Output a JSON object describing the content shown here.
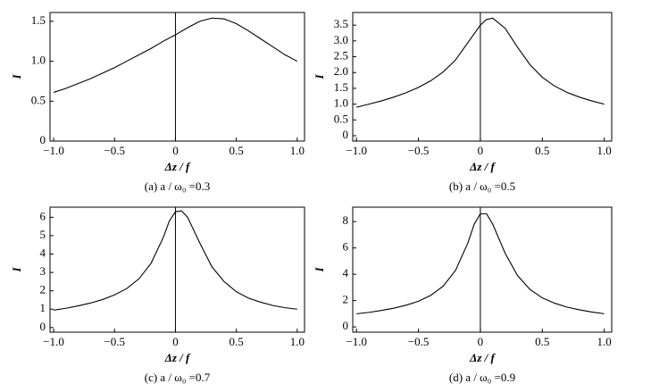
{
  "chart_data": [
    {
      "type": "line",
      "caption": "(a) a / ω₀ =0.3",
      "x_label": "Δz / f",
      "y_label": "I",
      "x": [
        -1,
        -0.9,
        -0.8,
        -0.7,
        -0.6,
        -0.5,
        -0.4,
        -0.3,
        -0.2,
        -0.1,
        0,
        0.1,
        0.2,
        0.3,
        0.4,
        0.5,
        0.6,
        0.7,
        0.8,
        0.9,
        1
      ],
      "values": [
        0.61,
        0.66,
        0.72,
        0.78,
        0.85,
        0.92,
        1.0,
        1.08,
        1.16,
        1.25,
        1.33,
        1.42,
        1.5,
        1.54,
        1.53,
        1.47,
        1.38,
        1.28,
        1.18,
        1.08,
        1.0
      ],
      "color": "#000000",
      "xlim": [
        -1.03,
        1.06
      ],
      "ylim": [
        0,
        1.61
      ],
      "xticks": [
        {
          "value": -1,
          "label": "−1.0"
        },
        {
          "value": -0.5,
          "label": "−0.5"
        },
        0,
        0.5,
        {
          "value": 1,
          "label": "1.0"
        }
      ],
      "yticks": [
        0,
        0.5,
        {
          "value": 1,
          "label": "1.0"
        },
        1.5
      ]
    },
    {
      "type": "line",
      "caption": "(b) a / ω₀ =0.5",
      "x_label": "Δz / f",
      "y_label": "I",
      "x": [
        -1,
        -0.9,
        -0.8,
        -0.7,
        -0.6,
        -0.5,
        -0.4,
        -0.3,
        -0.2,
        -0.1,
        0,
        0.05,
        0.1,
        0.2,
        0.3,
        0.4,
        0.5,
        0.6,
        0.7,
        0.8,
        0.9,
        1
      ],
      "values": [
        0.9,
        1.0,
        1.1,
        1.22,
        1.36,
        1.53,
        1.74,
        2.02,
        2.4,
        2.95,
        3.5,
        3.68,
        3.72,
        3.4,
        2.8,
        2.25,
        1.85,
        1.57,
        1.37,
        1.22,
        1.1,
        1.0
      ],
      "color": "#000000",
      "xlim": [
        -1.03,
        1.06
      ],
      "ylim": [
        -0.17,
        3.9
      ],
      "xticks": [
        {
          "value": -1,
          "label": "−1.0"
        },
        {
          "value": -0.5,
          "label": "−0.5"
        },
        0,
        0.5,
        {
          "value": 1,
          "label": "1.0"
        }
      ],
      "yticks": [
        0,
        0.5,
        {
          "value": 1,
          "label": "1.0"
        },
        1.5,
        {
          "value": 2,
          "label": "2.0"
        },
        2.5,
        {
          "value": 3,
          "label": "3.0"
        },
        3.5
      ]
    },
    {
      "type": "line",
      "caption": "(c) a / ω₀ =0.7",
      "x_label": "Δz / f",
      "y_label": "I",
      "x": [
        -1,
        -0.9,
        -0.8,
        -0.7,
        -0.6,
        -0.5,
        -0.4,
        -0.3,
        -0.2,
        -0.1,
        -0.05,
        0,
        0.05,
        0.1,
        0.2,
        0.3,
        0.4,
        0.5,
        0.6,
        0.7,
        0.8,
        0.9,
        1
      ],
      "values": [
        0.95,
        1.05,
        1.18,
        1.33,
        1.52,
        1.78,
        2.12,
        2.65,
        3.5,
        4.9,
        5.8,
        6.3,
        6.35,
        6.0,
        4.6,
        3.3,
        2.5,
        1.95,
        1.6,
        1.38,
        1.2,
        1.08,
        1.0
      ],
      "color": "#000000",
      "xlim": [
        -1.03,
        1.06
      ],
      "ylim": [
        -0.25,
        6.55
      ],
      "xticks": [
        {
          "value": -1,
          "label": "−1.0"
        },
        {
          "value": -0.5,
          "label": "−0.5"
        },
        0,
        0.5,
        {
          "value": 1,
          "label": "1.0"
        }
      ],
      "yticks": [
        0,
        1,
        2,
        3,
        4,
        5,
        6
      ]
    },
    {
      "type": "line",
      "caption": "(d) a / ω₀ =0.9",
      "x_label": "Δz / f",
      "y_label": "I",
      "x": [
        -1,
        -0.9,
        -0.8,
        -0.7,
        -0.6,
        -0.5,
        -0.4,
        -0.3,
        -0.2,
        -0.1,
        -0.05,
        0,
        0.05,
        0.1,
        0.2,
        0.3,
        0.4,
        0.5,
        0.6,
        0.7,
        0.8,
        0.9,
        1
      ],
      "values": [
        1.0,
        1.1,
        1.25,
        1.42,
        1.65,
        1.95,
        2.4,
        3.1,
        4.3,
        6.4,
        7.8,
        8.6,
        8.6,
        7.8,
        5.6,
        3.9,
        2.85,
        2.2,
        1.8,
        1.5,
        1.3,
        1.13,
        1.0
      ],
      "color": "#000000",
      "xlim": [
        -1.03,
        1.06
      ],
      "ylim": [
        -0.4,
        9.1
      ],
      "xticks": [
        {
          "value": -1,
          "label": "−1.0"
        },
        {
          "value": -0.5,
          "label": "−0.5"
        },
        0,
        0.5,
        {
          "value": 1,
          "label": "1.0"
        }
      ],
      "yticks": [
        0,
        2,
        4,
        6,
        8
      ]
    }
  ]
}
